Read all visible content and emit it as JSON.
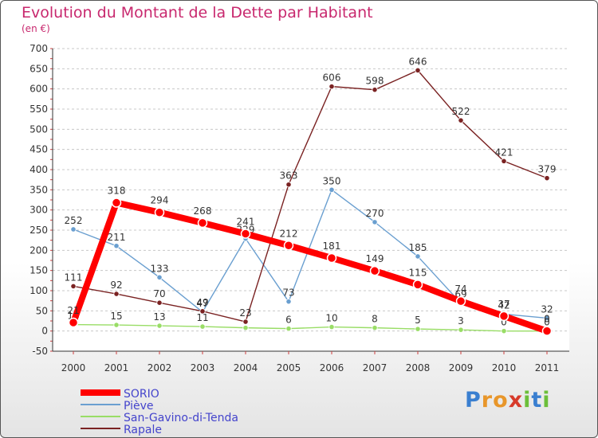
{
  "title": "Evolution du Montant de la Dette par Habitant",
  "unit": "(en €)",
  "logo": {
    "chars": [
      "P",
      "r",
      "o",
      "x",
      "i",
      "t",
      "i"
    ],
    "colors": [
      "#3a7fd0",
      "#e8962a",
      "#e8962a",
      "#d73a2a",
      "#6cbf3a",
      "#3a7fd0",
      "#6cbf3a"
    ]
  },
  "chart_data": {
    "type": "line",
    "x": [
      2000,
      2001,
      2002,
      2003,
      2004,
      2005,
      2006,
      2007,
      2008,
      2009,
      2010,
      2011
    ],
    "ylim": [
      -50,
      700
    ],
    "yticks": [
      -50,
      0,
      50,
      100,
      150,
      200,
      250,
      300,
      350,
      400,
      450,
      500,
      550,
      600,
      650,
      700
    ],
    "grid": "horizontal",
    "legend_position": "bottom-left",
    "series": [
      {
        "name": "SORIO",
        "color": "#ff0000",
        "emphasis": true,
        "values": [
          21,
          318,
          294,
          268,
          241,
          212,
          181,
          149,
          115,
          74,
          37,
          0
        ],
        "labels": [
          "21",
          "318",
          "294",
          "268",
          "241",
          "212",
          "181",
          "149",
          "115",
          "74",
          "37",
          "0"
        ]
      },
      {
        "name": "Piève",
        "color": "#6a9fd0",
        "values": [
          252,
          211,
          133,
          47,
          229,
          73,
          350,
          270,
          185,
          69,
          42,
          32
        ],
        "labels": [
          "252",
          "211",
          "133",
          "47",
          "229",
          "73",
          "350",
          "270",
          "185",
          "69",
          "42",
          "32"
        ]
      },
      {
        "name": "San-Gavino-di-Tenda",
        "color": "#99dd66",
        "values": [
          16,
          15,
          13,
          11,
          8,
          6,
          10,
          8,
          5,
          3,
          0,
          0
        ],
        "labels": [
          "16",
          "15",
          "13",
          "11",
          "",
          "6",
          "10",
          "8",
          "5",
          "3",
          "0",
          "0"
        ]
      },
      {
        "name": "Rapale",
        "color": "#7a2222",
        "values": [
          111,
          92,
          70,
          49,
          23,
          363,
          606,
          598,
          646,
          522,
          421,
          379
        ],
        "labels": [
          "111",
          "92",
          "70",
          "49",
          "23",
          "363",
          "606",
          "598",
          "646",
          "522",
          "421",
          "379"
        ]
      }
    ]
  }
}
